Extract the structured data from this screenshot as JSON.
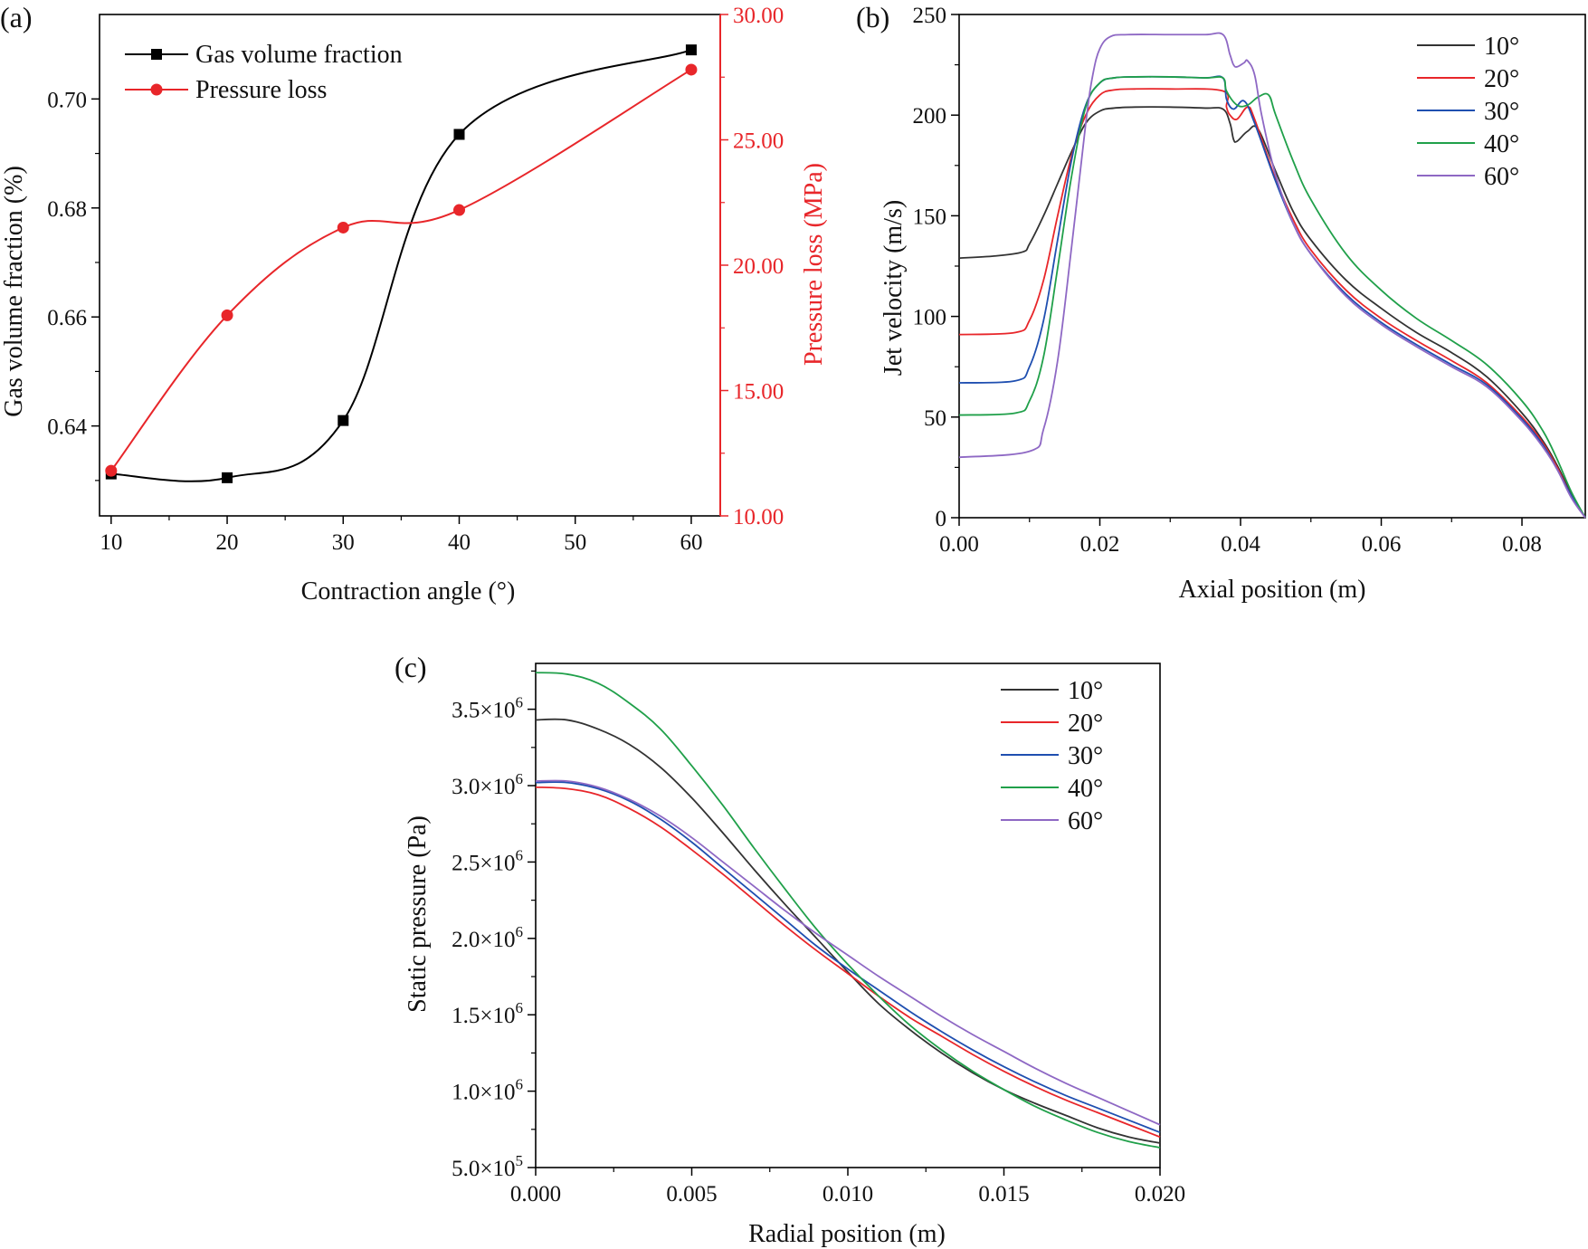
{
  "chart_data": [
    {
      "panel": "(a)",
      "type": "line",
      "xlabel": "Contraction angle (°)",
      "ylabel": "Gas volume fraction (%)",
      "y2label": "Pressure loss (MPa)",
      "xlim": [
        9,
        62.5
      ],
      "ylim": [
        0.6235,
        0.7155
      ],
      "y2lim": [
        10,
        30
      ],
      "xticks": [
        "10",
        "20",
        "30",
        "40",
        "50",
        "60"
      ],
      "yticks": [
        "0.64",
        "0.66",
        "0.68",
        "0.70"
      ],
      "y2ticks": [
        "10.00",
        "15.00",
        "20.00",
        "25.00",
        "30.00"
      ],
      "x": [
        10,
        20,
        30,
        40,
        60
      ],
      "series": [
        {
          "name": "Gas volume fraction",
          "axis": "left",
          "color": "#000000",
          "marker": "square",
          "values": [
            0.6312,
            0.6305,
            0.641,
            0.6935,
            0.709
          ]
        },
        {
          "name": "Pressure loss",
          "axis": "right",
          "color": "#e8262a",
          "marker": "circle",
          "values": [
            11.8,
            18.0,
            21.5,
            22.2,
            27.8
          ]
        }
      ],
      "legend_position": "top-left"
    },
    {
      "panel": "(b)",
      "type": "line",
      "xlabel": "Axial position (m)",
      "ylabel": "Jet velocity (m/s)",
      "xlim": [
        0,
        0.089
      ],
      "ylim": [
        0,
        250
      ],
      "xticks": [
        "0.00",
        "0.02",
        "0.04",
        "0.06",
        "0.08"
      ],
      "yticks": [
        "0",
        "50",
        "100",
        "150",
        "200",
        "250"
      ],
      "series": [
        {
          "name": "10°",
          "color": "#333333",
          "x": [
            0,
            0.005,
            0.009,
            0.01,
            0.012,
            0.014,
            0.016,
            0.018,
            0.02,
            0.022,
            0.025,
            0.03,
            0.035,
            0.0375,
            0.0385,
            0.039,
            0.0395,
            0.041,
            0.0425,
            0.045,
            0.0475,
            0.05,
            0.055,
            0.06,
            0.065,
            0.07,
            0.075,
            0.08,
            0.083,
            0.085,
            0.087,
            0.089
          ],
          "values": [
            129,
            130,
            132,
            136,
            150,
            166,
            182,
            196,
            202,
            203.5,
            204,
            204,
            203.5,
            203,
            196,
            188,
            187,
            192,
            193,
            172,
            152,
            138,
            118,
            104,
            92,
            82,
            70,
            52,
            38,
            26,
            12,
            0
          ]
        },
        {
          "name": "20°",
          "color": "#e8262a",
          "x": [
            0,
            0.008,
            0.01,
            0.012,
            0.014,
            0.016,
            0.018,
            0.02,
            0.022,
            0.025,
            0.03,
            0.0375,
            0.038,
            0.0385,
            0.0395,
            0.041,
            0.042,
            0.045,
            0.0475,
            0.05,
            0.055,
            0.06,
            0.065,
            0.07,
            0.075,
            0.08,
            0.083,
            0.085,
            0.087,
            0.089
          ],
          "values": [
            91,
            92,
            98,
            118,
            150,
            180,
            200,
            210,
            212.5,
            213,
            213,
            212,
            204,
            200,
            198,
            204,
            198,
            168,
            148,
            133,
            113,
            99,
            88,
            78,
            67,
            50,
            37,
            25,
            11,
            0
          ]
        },
        {
          "name": "30°",
          "color": "#1f4fb0",
          "x": [
            0,
            0.008,
            0.01,
            0.012,
            0.014,
            0.016,
            0.018,
            0.02,
            0.022,
            0.025,
            0.03,
            0.035,
            0.0375,
            0.038,
            0.039,
            0.0405,
            0.042,
            0.045,
            0.0475,
            0.05,
            0.055,
            0.06,
            0.065,
            0.07,
            0.075,
            0.08,
            0.083,
            0.085,
            0.087,
            0.089
          ],
          "values": [
            67,
            68,
            75,
            98,
            138,
            178,
            205,
            216,
            218.5,
            219,
            219,
            218.5,
            218.5,
            208,
            203,
            207,
            196,
            167,
            146,
            131,
            111,
            97,
            86,
            76,
            66,
            49,
            36,
            24,
            11,
            0
          ]
        },
        {
          "name": "40°",
          "color": "#20a04a",
          "x": [
            0,
            0.008,
            0.01,
            0.012,
            0.014,
            0.016,
            0.018,
            0.02,
            0.022,
            0.025,
            0.03,
            0.035,
            0.0375,
            0.038,
            0.0395,
            0.041,
            0.0425,
            0.044,
            0.045,
            0.0475,
            0.05,
            0.055,
            0.06,
            0.065,
            0.07,
            0.075,
            0.08,
            0.083,
            0.085,
            0.087,
            0.089
          ],
          "values": [
            51,
            52,
            58,
            80,
            124,
            170,
            204,
            216,
            218.5,
            219,
            219,
            218.5,
            218.5,
            212,
            205,
            205,
            209,
            210,
            200,
            177,
            158,
            131,
            113,
            99,
            88,
            76,
            58,
            43,
            29,
            13,
            0
          ]
        },
        {
          "name": "60°",
          "color": "#8e68c4",
          "x": [
            0,
            0.01,
            0.012,
            0.014,
            0.016,
            0.018,
            0.019,
            0.02,
            0.0215,
            0.024,
            0.03,
            0.035,
            0.0375,
            0.0385,
            0.039,
            0.0395,
            0.0405,
            0.041,
            0.042,
            0.043,
            0.045,
            0.0475,
            0.05,
            0.055,
            0.06,
            0.065,
            0.07,
            0.075,
            0.08,
            0.083,
            0.085,
            0.087,
            0.089
          ],
          "values": [
            30,
            33,
            44,
            78,
            135,
            196,
            220,
            233,
            239,
            240,
            240,
            240,
            240,
            230,
            225,
            224,
            226,
            227,
            220,
            200,
            170,
            146,
            131,
            110,
            96,
            85,
            75,
            65,
            48,
            35,
            24,
            10,
            0
          ]
        }
      ],
      "legend_position": "top-right"
    },
    {
      "panel": "(c)",
      "type": "line",
      "xlabel": "Radial position (m)",
      "ylabel": "Static pressure (Pa)",
      "xlim": [
        0,
        0.02
      ],
      "ylim": [
        500000,
        3800000
      ],
      "xticks": [
        "0.000",
        "0.005",
        "0.010",
        "0.015",
        "0.020"
      ],
      "yticks": [
        {
          "mantissa": "5.0",
          "exp": "5"
        },
        {
          "mantissa": "1.0",
          "exp": "6"
        },
        {
          "mantissa": "1.5",
          "exp": "6"
        },
        {
          "mantissa": "2.0",
          "exp": "6"
        },
        {
          "mantissa": "2.5",
          "exp": "6"
        },
        {
          "mantissa": "3.0",
          "exp": "6"
        },
        {
          "mantissa": "3.5",
          "exp": "6"
        }
      ],
      "tick_times": "×10",
      "x": [
        0,
        0.001,
        0.002,
        0.003,
        0.004,
        0.005,
        0.006,
        0.007,
        0.008,
        0.009,
        0.01,
        0.011,
        0.012,
        0.013,
        0.014,
        0.015,
        0.016,
        0.017,
        0.018,
        0.019,
        0.02
      ],
      "series": [
        {
          "name": "10°",
          "color": "#333333",
          "values": [
            3430000,
            3430000,
            3370000,
            3270000,
            3120000,
            2920000,
            2690000,
            2450000,
            2220000,
            2000000,
            1780000,
            1570000,
            1400000,
            1250000,
            1120000,
            1010000,
            920000,
            840000,
            760000,
            700000,
            660000
          ]
        },
        {
          "name": "20°",
          "color": "#e8262a",
          "values": [
            2990000,
            2980000,
            2940000,
            2850000,
            2730000,
            2580000,
            2420000,
            2250000,
            2080000,
            1920000,
            1770000,
            1620000,
            1480000,
            1360000,
            1240000,
            1130000,
            1030000,
            940000,
            860000,
            780000,
            700000
          ]
        },
        {
          "name": "30°",
          "color": "#1f4fb0",
          "values": [
            3020000,
            3020000,
            2980000,
            2900000,
            2780000,
            2630000,
            2460000,
            2290000,
            2120000,
            1950000,
            1800000,
            1660000,
            1520000,
            1390000,
            1270000,
            1160000,
            1060000,
            970000,
            890000,
            810000,
            730000
          ]
        },
        {
          "name": "40°",
          "color": "#20a04a",
          "values": [
            3740000,
            3730000,
            3670000,
            3540000,
            3370000,
            3130000,
            2870000,
            2590000,
            2320000,
            2060000,
            1830000,
            1620000,
            1430000,
            1270000,
            1130000,
            1010000,
            900000,
            810000,
            730000,
            670000,
            630000
          ]
        },
        {
          "name": "60°",
          "color": "#8e68c4",
          "values": [
            3030000,
            3030000,
            2990000,
            2910000,
            2800000,
            2660000,
            2500000,
            2340000,
            2180000,
            2030000,
            1890000,
            1750000,
            1620000,
            1490000,
            1370000,
            1260000,
            1150000,
            1050000,
            960000,
            870000,
            780000
          ]
        }
      ],
      "legend_position": "top-right"
    }
  ]
}
